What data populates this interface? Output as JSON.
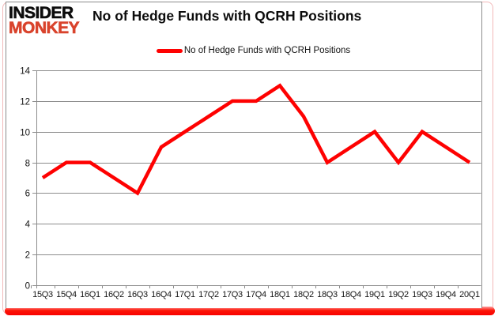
{
  "logo": {
    "line1": "INSIDER",
    "line2": "MONKEY"
  },
  "title": "No of Hedge Funds with QCRH Positions",
  "legend": {
    "label": "No of Hedge Funds with QCRH Positions",
    "swatch_color": "#fe0101"
  },
  "chart_data": {
    "type": "line",
    "title": "No of Hedge Funds with QCRH Positions",
    "series_name": "No of Hedge Funds with QCRH Positions",
    "categories": [
      "15Q3",
      "15Q4",
      "16Q1",
      "16Q2",
      "16Q3",
      "16Q4",
      "17Q1",
      "17Q2",
      "17Q3",
      "17Q4",
      "18Q1",
      "18Q2",
      "18Q3",
      "18Q4",
      "19Q1",
      "19Q2",
      "19Q3",
      "19Q4",
      "20Q1"
    ],
    "values": [
      7,
      8,
      8,
      7,
      6,
      9,
      10,
      11,
      12,
      12,
      13,
      11,
      8,
      9,
      10,
      8,
      10,
      9,
      8
    ],
    "xlabel": "",
    "ylabel": "",
    "ylim": [
      0,
      14
    ],
    "yticks": [
      0,
      2,
      4,
      6,
      8,
      10,
      12,
      14
    ],
    "grid": true,
    "legend_position": "top-center",
    "line_color": "#fe0101",
    "gridline_color": "#8c8c8c",
    "axis_label_color": "#141414"
  },
  "frame": {
    "bottom_bar_color": "#f90202",
    "outline_color": "#f2b9b9",
    "panel_border_color": "#8c8c8c"
  }
}
